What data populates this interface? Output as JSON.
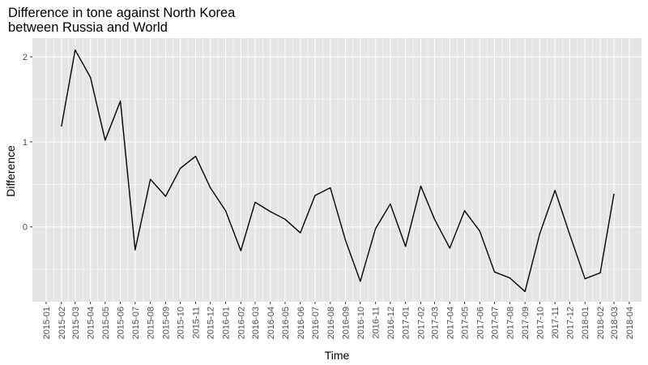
{
  "chart_data": {
    "type": "line",
    "title_lines": [
      "Difference in tone against North Korea",
      "between Russia and World"
    ],
    "xlabel": "Time",
    "ylabel": "Difference",
    "grid": true,
    "colors": {
      "panel": "#e5e5e5",
      "grid": "#ffffff",
      "line": "#000000",
      "tick_text": "#4d4d4d"
    },
    "x_ticks": [
      "2015-01",
      "2015-02",
      "2015-03",
      "2015-04",
      "2015-05",
      "2015-06",
      "2015-07",
      "2015-08",
      "2015-09",
      "2015-10",
      "2015-11",
      "2015-12",
      "2016-01",
      "2016-02",
      "2016-03",
      "2016-04",
      "2016-05",
      "2016-06",
      "2016-07",
      "2016-08",
      "2016-09",
      "2016-10",
      "2016-11",
      "2016-12",
      "2017-01",
      "2017-02",
      "2017-03",
      "2017-04",
      "2017-05",
      "2017-06",
      "2017-07",
      "2017-08",
      "2017-09",
      "2017-10",
      "2017-11",
      "2017-12",
      "2018-01",
      "2018-02",
      "2018-03",
      "2018-04"
    ],
    "y_ticks": [
      0,
      1,
      2
    ],
    "ylim": [
      -0.88,
      2.22
    ],
    "xlim": [
      "2014-12-04",
      "2018-04-26"
    ],
    "series": [
      {
        "points": [
          [
            "2015-02-01",
            1.18
          ],
          [
            "2015-03-01",
            2.08
          ],
          [
            "2015-04-01",
            1.76
          ],
          [
            "2015-05-01",
            1.02
          ],
          [
            "2015-06-01",
            1.48
          ],
          [
            "2015-07-01",
            -0.27
          ],
          [
            "2015-08-01",
            0.56
          ],
          [
            "2015-09-01",
            0.36
          ],
          [
            "2015-10-01",
            0.69
          ],
          [
            "2015-11-01",
            0.83
          ],
          [
            "2015-12-01",
            0.46
          ],
          [
            "2016-01-01",
            0.19
          ],
          [
            "2016-02-01",
            -0.28
          ],
          [
            "2016-03-01",
            0.29
          ],
          [
            "2016-04-01",
            0.18
          ],
          [
            "2016-05-01",
            0.09
          ],
          [
            "2016-06-01",
            -0.07
          ],
          [
            "2016-07-01",
            0.37
          ],
          [
            "2016-08-01",
            0.46
          ],
          [
            "2016-09-01",
            -0.16
          ],
          [
            "2016-10-01",
            -0.64
          ],
          [
            "2016-11-01",
            -0.02
          ],
          [
            "2016-12-01",
            0.27
          ],
          [
            "2017-01-01",
            -0.23
          ],
          [
            "2017-02-01",
            0.48
          ],
          [
            "2017-03-01",
            0.09
          ],
          [
            "2017-04-01",
            -0.25
          ],
          [
            "2017-05-01",
            0.19
          ],
          [
            "2017-06-01",
            -0.05
          ],
          [
            "2017-07-01",
            -0.53
          ],
          [
            "2017-08-01",
            -0.6
          ],
          [
            "2017-09-01",
            -0.76
          ],
          [
            "2017-10-01",
            -0.08
          ],
          [
            "2017-11-01",
            0.43
          ],
          [
            "2017-12-01",
            -0.09
          ],
          [
            "2018-01-01",
            -0.61
          ],
          [
            "2018-02-01",
            -0.54
          ],
          [
            "2018-03-01",
            0.39
          ]
        ]
      }
    ]
  }
}
